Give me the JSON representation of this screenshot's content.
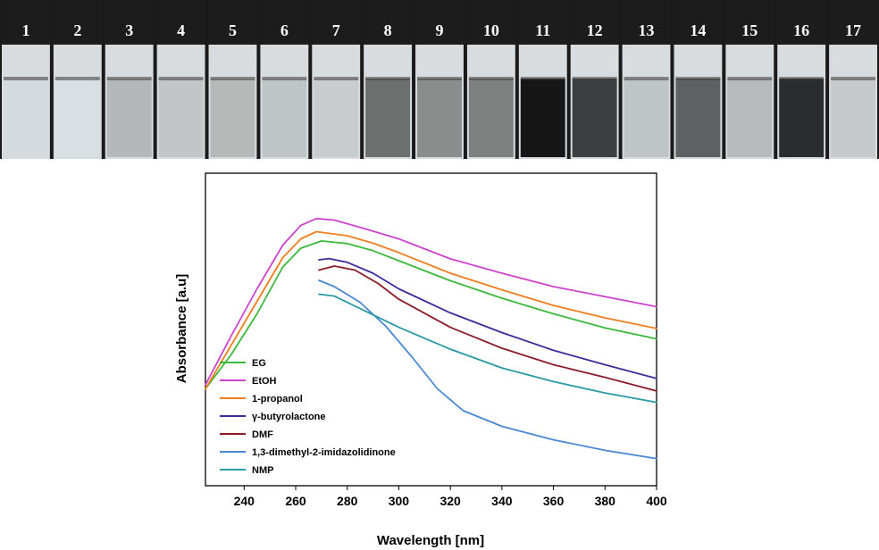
{
  "vials": {
    "labels": [
      "1",
      "2",
      "3",
      "4",
      "5",
      "6",
      "7",
      "8",
      "9",
      "10",
      "11",
      "12",
      "13",
      "14",
      "15",
      "16",
      "17"
    ],
    "liquid_colors": [
      "#d4dade",
      "#d9e0e4",
      "#b5b8b8",
      "#c3c6c7",
      "#b7b9b8",
      "#bfc4c6",
      "#c8ccce",
      "#6c6f6e",
      "#8a8d8c",
      "#7e8180",
      "#161617",
      "#3c3e3f",
      "#bfc4c6",
      "#5e6061",
      "#b7b9ba",
      "#2a2c2d",
      "#c5c9cb"
    ]
  },
  "chart_data": {
    "type": "line",
    "title": "",
    "xlabel": "Wavelength [nm]",
    "ylabel": "Absorbance [a.u]",
    "xlim": [
      225,
      400
    ],
    "ylim": [
      0,
      1
    ],
    "xticks": [
      240,
      260,
      280,
      300,
      320,
      340,
      360,
      380,
      400
    ],
    "grid": false,
    "legend_position": "bottom-left",
    "series": [
      {
        "name": "EG",
        "color": "#3cb83c",
        "points": [
          [
            225,
            0.31
          ],
          [
            235,
            0.42
          ],
          [
            245,
            0.55
          ],
          [
            255,
            0.7
          ],
          [
            262,
            0.76
          ],
          [
            270,
            0.783
          ],
          [
            280,
            0.775
          ],
          [
            290,
            0.752
          ],
          [
            300,
            0.72
          ],
          [
            320,
            0.656
          ],
          [
            340,
            0.6
          ],
          [
            360,
            0.55
          ],
          [
            380,
            0.505
          ],
          [
            400,
            0.47
          ]
        ]
      },
      {
        "name": "EtOH",
        "color": "#cc44cc",
        "points": [
          [
            225,
            0.323
          ],
          [
            235,
            0.48
          ],
          [
            245,
            0.63
          ],
          [
            255,
            0.77
          ],
          [
            262,
            0.833
          ],
          [
            268,
            0.855
          ],
          [
            275,
            0.85
          ],
          [
            285,
            0.827
          ],
          [
            300,
            0.79
          ],
          [
            320,
            0.726
          ],
          [
            340,
            0.68
          ],
          [
            360,
            0.637
          ],
          [
            380,
            0.605
          ],
          [
            400,
            0.573
          ]
        ]
      },
      {
        "name": "1-propanol",
        "color": "#f07e1e",
        "points": [
          [
            225,
            0.31
          ],
          [
            235,
            0.45
          ],
          [
            245,
            0.59
          ],
          [
            255,
            0.73
          ],
          [
            262,
            0.79
          ],
          [
            268,
            0.813
          ],
          [
            280,
            0.8
          ],
          [
            290,
            0.776
          ],
          [
            300,
            0.746
          ],
          [
            320,
            0.68
          ],
          [
            340,
            0.627
          ],
          [
            360,
            0.577
          ],
          [
            380,
            0.537
          ],
          [
            400,
            0.503
          ]
        ]
      },
      {
        "name": "γ-butyrolactone",
        "color": "#3c2c9c",
        "points": [
          [
            269,
            0.723
          ],
          [
            273,
            0.727
          ],
          [
            280,
            0.715
          ],
          [
            290,
            0.68
          ],
          [
            300,
            0.63
          ],
          [
            320,
            0.553
          ],
          [
            340,
            0.49
          ],
          [
            360,
            0.433
          ],
          [
            380,
            0.387
          ],
          [
            400,
            0.343
          ]
        ]
      },
      {
        "name": "DMF",
        "color": "#8c1c28",
        "points": [
          [
            269,
            0.69
          ],
          [
            275,
            0.703
          ],
          [
            283,
            0.69
          ],
          [
            292,
            0.647
          ],
          [
            300,
            0.597
          ],
          [
            320,
            0.507
          ],
          [
            340,
            0.44
          ],
          [
            360,
            0.387
          ],
          [
            380,
            0.347
          ],
          [
            400,
            0.303
          ]
        ]
      },
      {
        "name": "1,3-dimethyl-2-imidazolidinone",
        "color": "#4a88d4",
        "points": [
          [
            269,
            0.657
          ],
          [
            275,
            0.637
          ],
          [
            285,
            0.587
          ],
          [
            295,
            0.51
          ],
          [
            305,
            0.413
          ],
          [
            315,
            0.31
          ],
          [
            325,
            0.24
          ],
          [
            340,
            0.19
          ],
          [
            360,
            0.147
          ],
          [
            380,
            0.113
          ],
          [
            400,
            0.087
          ]
        ]
      },
      {
        "name": "NMP",
        "color": "#2a9aa4",
        "points": [
          [
            269,
            0.613
          ],
          [
            275,
            0.607
          ],
          [
            285,
            0.567
          ],
          [
            300,
            0.507
          ],
          [
            320,
            0.437
          ],
          [
            340,
            0.377
          ],
          [
            360,
            0.333
          ],
          [
            380,
            0.297
          ],
          [
            400,
            0.267
          ]
        ]
      }
    ]
  }
}
